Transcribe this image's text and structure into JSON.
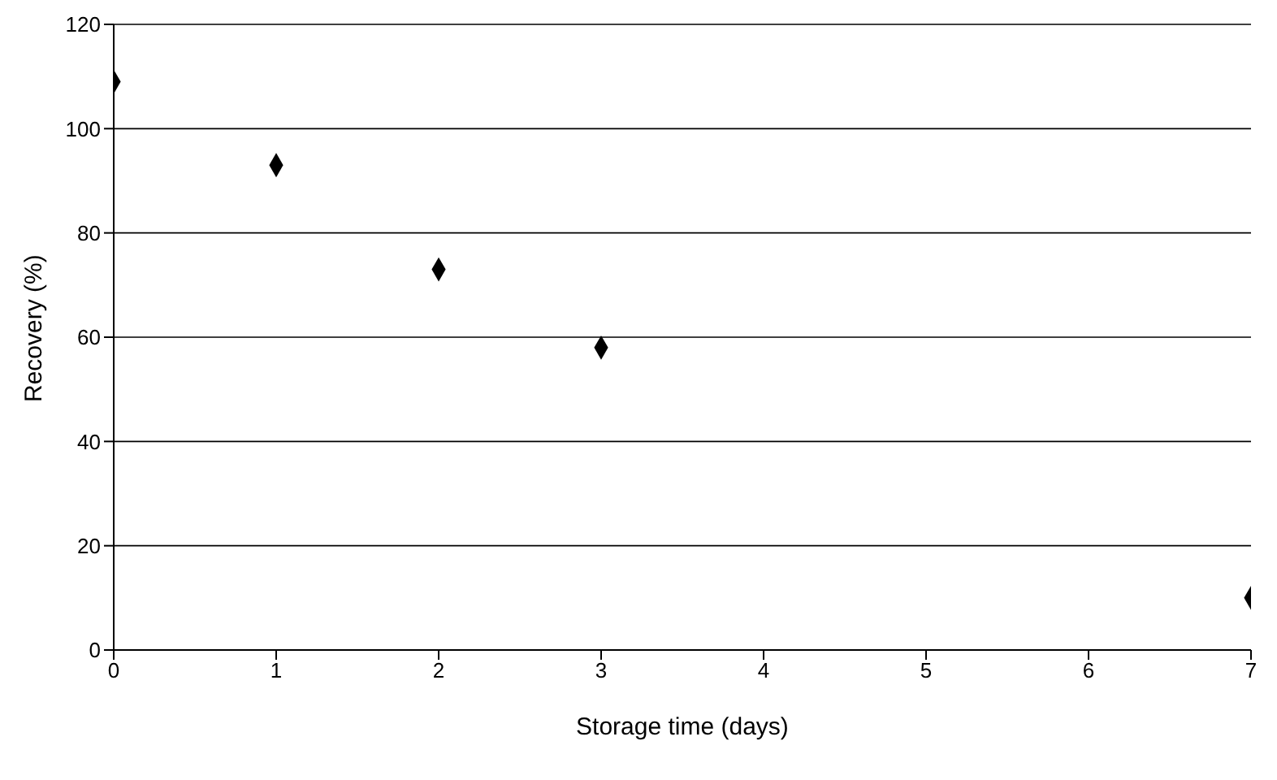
{
  "chart_data": {
    "type": "scatter",
    "xlabel": "Storage time (days)",
    "ylabel": "Recovery (%)",
    "x": [
      0,
      1,
      2,
      3,
      7
    ],
    "series": [
      {
        "color": "#000000",
        "values": [
          109,
          93,
          73,
          58,
          10
        ]
      }
    ],
    "xlim": [
      0,
      7
    ],
    "xticks": [
      0,
      1,
      2,
      3,
      4,
      5,
      6,
      7
    ],
    "ylim": [
      0,
      120
    ],
    "yticks": [
      0,
      20,
      40,
      60,
      80,
      100,
      120
    ],
    "grid": "y",
    "marker": "diamond",
    "legend": false
  }
}
